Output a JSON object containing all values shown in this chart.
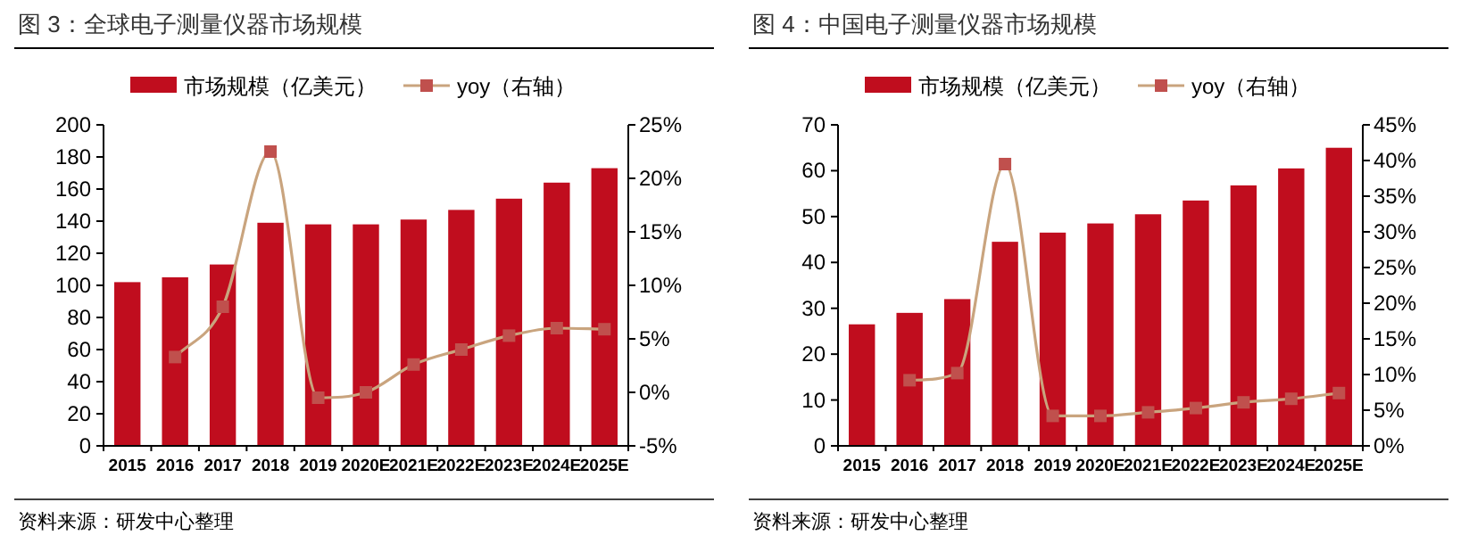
{
  "chart_data": [
    {
      "type": "bar",
      "title": "图 3：全球电子测量仪器市场规模",
      "categories": [
        "2015",
        "2016",
        "2017",
        "2018",
        "2019",
        "2020E",
        "2021E",
        "2022E",
        "2023E",
        "2024E",
        "2025E"
      ],
      "series": [
        {
          "name": "市场规模（亿美元）",
          "color": "#c00d1e",
          "values": [
            102,
            105,
            113,
            139,
            138,
            138,
            141,
            147,
            154,
            164,
            173
          ]
        },
        {
          "name": "yoy（右轴）",
          "type": "line",
          "axis": "y2",
          "marker": "square",
          "color": "#c9a47e",
          "colors": [
            "#c0504d",
            "#c0504d",
            "#c0504d",
            "#c0504d",
            "#c0504d",
            "#c0504d",
            "#c0504d",
            "#c0504d",
            "#c0504d",
            "#c0504d",
            "#c0504d"
          ],
          "values": [
            null,
            3.3,
            8,
            22.5,
            -0.5,
            0,
            2.6,
            4,
            5.3,
            6,
            5.9
          ]
        }
      ],
      "ylim": [
        0,
        200
      ],
      "yticks": [
        0,
        20,
        40,
        60,
        80,
        100,
        120,
        140,
        160,
        180,
        200
      ],
      "y2lim": [
        -5,
        25
      ],
      "y2ticks": [
        {
          "value": -5,
          "label": "-5%"
        },
        {
          "value": 0,
          "label": "0%"
        },
        {
          "value": 5,
          "label": "5%"
        },
        {
          "value": 10,
          "label": "10%"
        },
        {
          "value": 15,
          "label": "15%"
        },
        {
          "value": 20,
          "label": "20%"
        },
        {
          "value": 25,
          "label": "25%"
        }
      ],
      "legend": "top",
      "annotations": [
        "资料来源：研发中心整理"
      ]
    },
    {
      "type": "bar",
      "title": "图 4：中国电子测量仪器市场规模",
      "categories": [
        "2015",
        "2016",
        "2017",
        "2018",
        "2019",
        "2020E",
        "2021E",
        "2022E",
        "2023E",
        "2024E",
        "2025E"
      ],
      "series": [
        {
          "name": "市场规模（亿美元）",
          "color": "#c00d1e",
          "values": [
            26.5,
            29,
            32,
            44.5,
            46.5,
            48.5,
            50.5,
            53.5,
            56.8,
            60.5,
            65
          ]
        },
        {
          "name": "yoy（右轴）",
          "type": "line",
          "axis": "y2",
          "marker": "square",
          "color": "#c9a47e",
          "colors": [
            "#c0504d",
            "#c0504d",
            "#c0504d",
            "#c0504d",
            "#c0504d",
            "#c0504d",
            "#c0504d",
            "#c0504d",
            "#c0504d",
            "#c0504d",
            "#c0504d"
          ],
          "values": [
            null,
            9.2,
            10.2,
            39.5,
            4.2,
            4.2,
            4.7,
            5.3,
            6.1,
            6.6,
            7.4
          ]
        }
      ],
      "ylim": [
        0,
        70
      ],
      "yticks": [
        0,
        10,
        20,
        30,
        40,
        50,
        60,
        70
      ],
      "y2lim": [
        0,
        45
      ],
      "y2ticks": [
        {
          "value": 0,
          "label": "0%"
        },
        {
          "value": 5,
          "label": "5%"
        },
        {
          "value": 10,
          "label": "10%"
        },
        {
          "value": 15,
          "label": "15%"
        },
        {
          "value": 20,
          "label": "20%"
        },
        {
          "value": 25,
          "label": "25%"
        },
        {
          "value": 30,
          "label": "30%"
        },
        {
          "value": 35,
          "label": "35%"
        },
        {
          "value": 40,
          "label": "40%"
        },
        {
          "value": 45,
          "label": "45%"
        }
      ],
      "legend": "top",
      "annotations": [
        "资料来源：研发中心整理"
      ]
    }
  ]
}
